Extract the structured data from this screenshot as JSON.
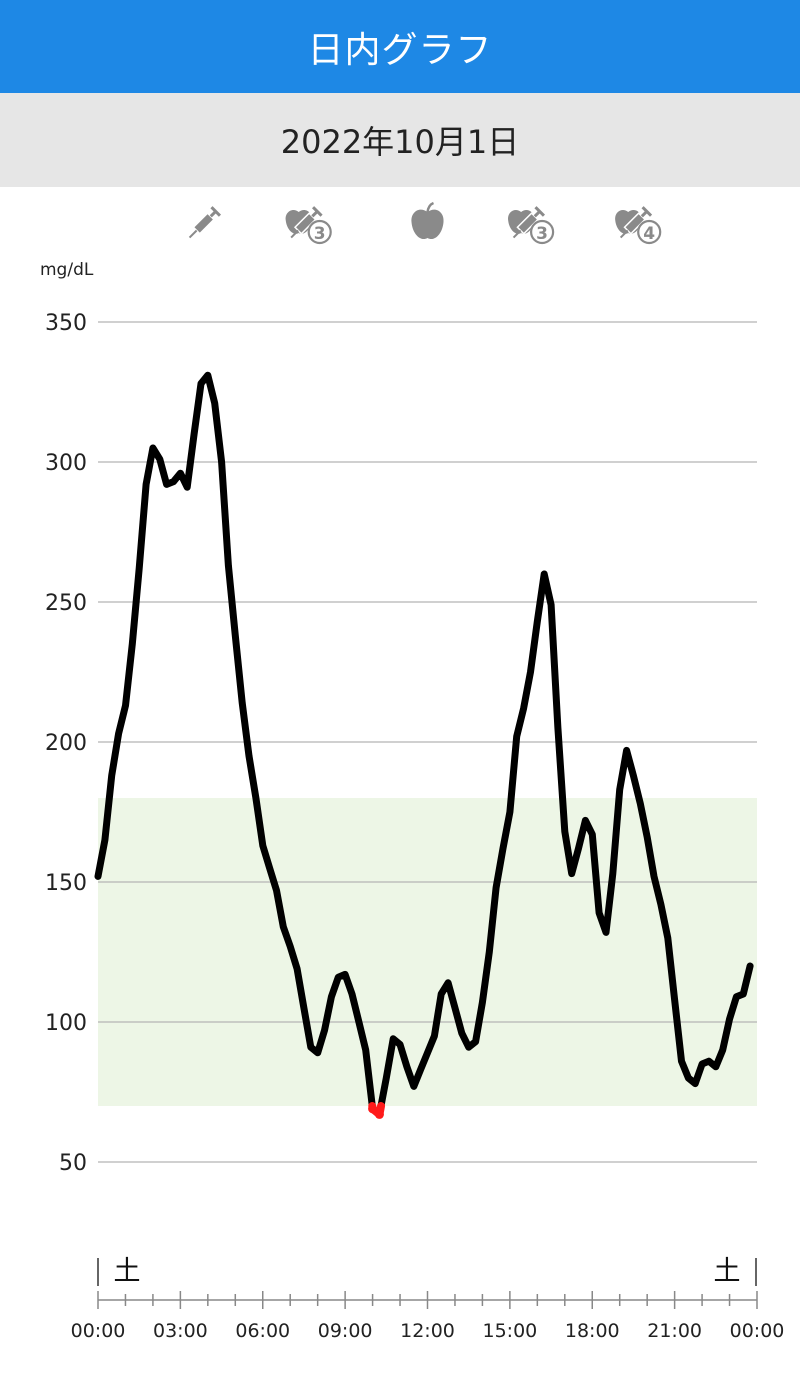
{
  "header": {
    "title": "日内グラフ"
  },
  "date_bar": {
    "date": "2022年10月1日"
  },
  "events": [
    {
      "icon": "insulin-syringe-icon",
      "time": 3.9,
      "badge": ""
    },
    {
      "icon": "meal-insulin-icon",
      "time": 7.6,
      "badge": "3"
    },
    {
      "icon": "apple-icon",
      "time": 12.0,
      "badge": ""
    },
    {
      "icon": "meal-insulin-icon",
      "time": 15.7,
      "badge": "3"
    },
    {
      "icon": "meal-insulin-icon",
      "time": 19.6,
      "badge": "4"
    }
  ],
  "day_labels": {
    "start": "土",
    "end": "土"
  },
  "colors": {
    "header": "#1e88e5",
    "line": "#000000",
    "low": "#ff1a1a",
    "target_band": "#edf6e6",
    "icon": "#8a8a8a"
  },
  "chart_data": {
    "type": "line",
    "ylabel": "mg/dL",
    "ylim": [
      30,
      350
    ],
    "y_ticks": [
      350,
      300,
      250,
      200,
      150,
      100,
      50
    ],
    "x_range_hours": [
      0,
      24
    ],
    "x_ticks": [
      "00:00",
      "03:00",
      "06:00",
      "09:00",
      "12:00",
      "15:00",
      "18:00",
      "21:00",
      "00:00"
    ],
    "target_range": [
      70,
      180
    ],
    "low_threshold": 70,
    "series": [
      {
        "points": [
          [
            "00:00",
            152
          ],
          [
            "00:15",
            165
          ],
          [
            "00:30",
            188
          ],
          [
            "00:45",
            203
          ],
          [
            "01:00",
            213
          ],
          [
            "01:15",
            235
          ],
          [
            "01:30",
            262
          ],
          [
            "01:45",
            292
          ],
          [
            "02:00",
            305
          ],
          [
            "02:15",
            301
          ],
          [
            "02:30",
            292
          ],
          [
            "02:45",
            293
          ],
          [
            "03:00",
            296
          ],
          [
            "03:15",
            291
          ],
          [
            "03:30",
            310
          ],
          [
            "03:45",
            328
          ],
          [
            "04:00",
            331
          ],
          [
            "04:15",
            321
          ],
          [
            "04:30",
            300
          ],
          [
            "04:45",
            263
          ],
          [
            "05:00",
            238
          ],
          [
            "05:15",
            214
          ],
          [
            "05:30",
            195
          ],
          [
            "05:45",
            180
          ],
          [
            "06:00",
            163
          ],
          [
            "06:15",
            155
          ],
          [
            "06:30",
            147
          ],
          [
            "06:45",
            134
          ],
          [
            "07:00",
            127
          ],
          [
            "07:15",
            119
          ],
          [
            "07:30",
            105
          ],
          [
            "07:45",
            91
          ],
          [
            "08:00",
            89
          ],
          [
            "08:15",
            97
          ],
          [
            "08:30",
            109
          ],
          [
            "08:45",
            116
          ],
          [
            "09:00",
            117
          ],
          [
            "09:15",
            110
          ],
          [
            "09:30",
            100
          ],
          [
            "09:45",
            90
          ],
          [
            "10:00",
            69
          ],
          [
            "10:15",
            67
          ],
          [
            "10:30",
            80
          ],
          [
            "10:45",
            94
          ],
          [
            "11:00",
            92
          ],
          [
            "11:15",
            84
          ],
          [
            "11:30",
            77
          ],
          [
            "11:45",
            83
          ],
          [
            "12:00",
            89
          ],
          [
            "12:15",
            95
          ],
          [
            "12:30",
            110
          ],
          [
            "12:45",
            114
          ],
          [
            "13:00",
            105
          ],
          [
            "13:15",
            96
          ],
          [
            "13:30",
            91
          ],
          [
            "13:45",
            93
          ],
          [
            "14:00",
            107
          ],
          [
            "14:15",
            125
          ],
          [
            "14:30",
            148
          ],
          [
            "14:45",
            162
          ],
          [
            "15:00",
            175
          ],
          [
            "15:15",
            202
          ],
          [
            "15:30",
            212
          ],
          [
            "15:45",
            225
          ],
          [
            "16:00",
            243
          ],
          [
            "16:15",
            260
          ],
          [
            "16:30",
            249
          ],
          [
            "16:45",
            205
          ],
          [
            "17:00",
            168
          ],
          [
            "17:15",
            153
          ],
          [
            "17:30",
            162
          ],
          [
            "17:45",
            172
          ],
          [
            "18:00",
            167
          ],
          [
            "18:15",
            139
          ],
          [
            "18:30",
            132
          ],
          [
            "18:45",
            153
          ],
          [
            "19:00",
            183
          ],
          [
            "19:15",
            197
          ],
          [
            "19:30",
            188
          ],
          [
            "19:45",
            178
          ],
          [
            "20:00",
            166
          ],
          [
            "20:15",
            152
          ],
          [
            "20:30",
            142
          ],
          [
            "20:45",
            130
          ],
          [
            "21:00",
            108
          ],
          [
            "21:15",
            86
          ],
          [
            "21:30",
            80
          ],
          [
            "21:45",
            78
          ],
          [
            "22:00",
            85
          ],
          [
            "22:15",
            86
          ],
          [
            "22:30",
            84
          ],
          [
            "22:45",
            90
          ],
          [
            "23:00",
            101
          ],
          [
            "23:15",
            109
          ],
          [
            "23:30",
            110
          ],
          [
            "23:45",
            120
          ]
        ]
      }
    ]
  }
}
